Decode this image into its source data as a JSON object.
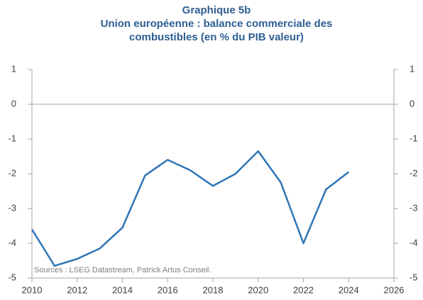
{
  "chart_data": {
    "type": "line",
    "title": "Graphique 5b",
    "subtitle": [
      "Union européenne : balance commerciale des",
      "combustibles (en % du PIB valeur)"
    ],
    "annotation": "Sources : LSEG Datastream, Patrick Artus Conseil.",
    "x": [
      2010,
      2011,
      2012,
      2013,
      2014,
      2015,
      2016,
      2017,
      2018,
      2019,
      2020,
      2021,
      2022,
      2023,
      2024
    ],
    "series": [
      {
        "name": "Balance commerciale des combustibles",
        "color": "#2e75b6",
        "values": [
          -3.6,
          -4.65,
          -4.45,
          -4.15,
          -3.55,
          -2.05,
          -1.6,
          -1.9,
          -2.35,
          -2.0,
          -1.35,
          -2.25,
          -4.0,
          -2.45,
          -1.95
        ]
      }
    ],
    "xlim": [
      2010,
      2026
    ],
    "xticks": [
      2010,
      2012,
      2014,
      2016,
      2018,
      2020,
      2022,
      2024,
      2026
    ],
    "ylim": [
      -5,
      1
    ],
    "yticks": [
      -5,
      -4,
      -3,
      -2,
      -1,
      0,
      1
    ],
    "y2lim": [
      -5,
      1
    ],
    "y2ticks": [
      -5,
      -4,
      -3,
      -2,
      -1,
      0,
      1
    ],
    "legend": false
  }
}
